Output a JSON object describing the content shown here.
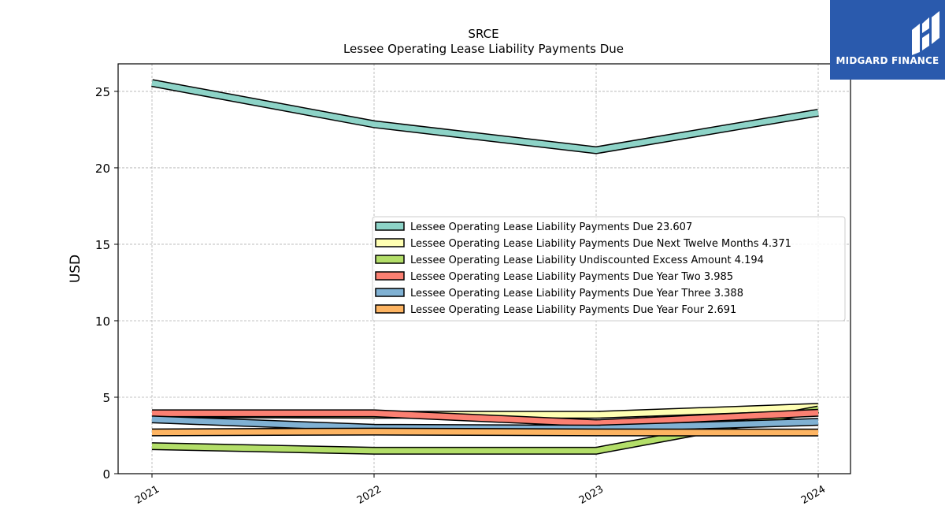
{
  "brand": {
    "name": "MIDGARD FINANCE",
    "logo_icon": "midgard-logo-icon",
    "background_color": "#2a5aad"
  },
  "chart_data": {
    "type": "line",
    "title": "SRCE",
    "subtitle": "Lessee Operating Lease Liability Payments Due",
    "xlabel": "",
    "ylabel": "USD",
    "categories": [
      "2021",
      "2022",
      "2023",
      "2024"
    ],
    "ylim": [
      0,
      26.8
    ],
    "yticks": [
      0,
      5,
      10,
      15,
      20,
      25
    ],
    "grid": true,
    "legend_position": "center-right",
    "series": [
      {
        "name": "Lessee Operating Lease Liability Payments Due",
        "legend_label": "Lessee Operating Lease Liability Payments Due  23.607",
        "color": "#8dd3c7",
        "values": [
          25.55,
          22.85,
          21.15,
          23.607
        ]
      },
      {
        "name": "Lessee Operating Lease Liability Payments Due Next Twelve Months",
        "legend_label": "Lessee Operating Lease Liability Payments Due Next Twelve Months  4.371",
        "color": "#ffffb3",
        "values": [
          3.9,
          3.85,
          3.85,
          4.371
        ]
      },
      {
        "name": "Lessee Operating Lease Liability Undiscounted Excess Amount",
        "legend_label": "Lessee Operating Lease Liability Undiscounted Excess Amount  4.194",
        "color": "#b3de69",
        "values": [
          1.8,
          1.5,
          1.5,
          4.194
        ]
      },
      {
        "name": "Lessee Operating Lease Liability Payments Due Year Two",
        "legend_label": "Lessee Operating Lease Liability Payments Due Year Two  3.985",
        "color": "#fb8072",
        "values": [
          3.95,
          3.95,
          3.3,
          3.985
        ]
      },
      {
        "name": "Lessee Operating Lease Liability Payments Due Year Three",
        "legend_label": "Lessee Operating Lease Liability Payments Due Year Three  3.388",
        "color": "#80b1d3",
        "values": [
          3.55,
          3.0,
          2.95,
          3.388
        ]
      },
      {
        "name": "Lessee Operating Lease Liability Payments Due Year Four",
        "legend_label": "Lessee Operating Lease Liability Payments Due Year Four  2.691",
        "color": "#fdb462",
        "values": [
          2.7,
          2.75,
          2.7,
          2.691
        ]
      }
    ]
  }
}
